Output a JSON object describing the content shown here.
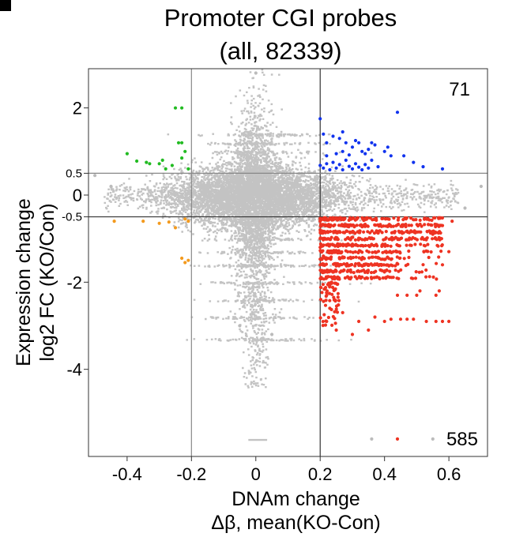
{
  "panel_letter": "",
  "chart_data": {
    "type": "scatter",
    "title": [
      "Promoter CGI probes",
      "(all, 82339)"
    ],
    "xlabel": [
      "DNAm change",
      "Δβ, mean(KO-Con)"
    ],
    "ylabel": [
      "Expression change",
      "log2 FC (KO/Con)"
    ],
    "xlim": [
      -0.52,
      0.72
    ],
    "ylim": [
      -6.0,
      2.9
    ],
    "x_ticks": [
      {
        "value": -0.4,
        "label": "-0.4"
      },
      {
        "value": -0.2,
        "label": "-0.2"
      },
      {
        "value": 0,
        "label": "0"
      },
      {
        "value": 0.2,
        "label": "0.2"
      },
      {
        "value": 0.4,
        "label": "0.4"
      },
      {
        "value": 0.6,
        "label": "0.6"
      }
    ],
    "y_ticks": [
      {
        "value": 2,
        "label": "2",
        "size": "large"
      },
      {
        "value": 0.5,
        "label": "0.5",
        "size": "small"
      },
      {
        "value": 0,
        "label": "0",
        "size": "large"
      },
      {
        "value": -0.5,
        "label": "-0.5",
        "size": "small"
      },
      {
        "value": -2,
        "label": "-2",
        "size": "large"
      },
      {
        "value": -4,
        "label": "-4",
        "size": "large"
      }
    ],
    "reference_lines": {
      "vertical": [
        -0.2,
        0.2
      ],
      "horizontal": [
        0.5,
        -0.5
      ]
    },
    "quadrant_counts": [
      {
        "label": "71",
        "position": "top-right"
      },
      {
        "label": "585",
        "position": "bottom-right"
      }
    ],
    "grid": false,
    "legend": "none",
    "series": [
      {
        "color": "#22bb22",
        "points": [
          [
            -0.4,
            0.95
          ],
          [
            -0.37,
            0.78
          ],
          [
            -0.34,
            0.75
          ],
          [
            -0.33,
            0.72
          ],
          [
            -0.29,
            0.8
          ],
          [
            -0.28,
            0.6
          ],
          [
            -0.26,
            0.68
          ],
          [
            -0.25,
            2.0
          ],
          [
            -0.24,
            1.2
          ],
          [
            -0.23,
            2.0
          ],
          [
            -0.23,
            1.2
          ],
          [
            -0.22,
            1.0
          ],
          [
            -0.23,
            0.85
          ],
          [
            -0.21,
            0.6
          ],
          [
            -0.3,
            0.72
          ]
        ]
      },
      {
        "color": "#1133ee",
        "points": [
          [
            0.2,
            1.75
          ],
          [
            0.21,
            1.4
          ],
          [
            0.22,
            1.2
          ],
          [
            0.24,
            1.35
          ],
          [
            0.26,
            1.3
          ],
          [
            0.27,
            1.45
          ],
          [
            0.28,
            1.2
          ],
          [
            0.3,
            1.1
          ],
          [
            0.31,
            1.25
          ],
          [
            0.32,
            1.2
          ],
          [
            0.34,
            0.95
          ],
          [
            0.36,
            1.2
          ],
          [
            0.37,
            1.15
          ],
          [
            0.4,
            1.0
          ],
          [
            0.42,
            0.9
          ],
          [
            0.44,
            1.9
          ],
          [
            0.46,
            0.9
          ],
          [
            0.49,
            0.75
          ],
          [
            0.52,
            0.65
          ],
          [
            0.58,
            0.6
          ],
          [
            0.2,
            0.68
          ],
          [
            0.21,
            0.62
          ],
          [
            0.22,
            0.72
          ],
          [
            0.23,
            0.58
          ],
          [
            0.24,
            0.75
          ],
          [
            0.25,
            0.62
          ],
          [
            0.26,
            0.7
          ],
          [
            0.27,
            0.58
          ],
          [
            0.28,
            0.8
          ],
          [
            0.29,
            0.66
          ],
          [
            0.3,
            0.6
          ],
          [
            0.31,
            0.72
          ],
          [
            0.32,
            0.64
          ],
          [
            0.33,
            0.58
          ],
          [
            0.34,
            0.7
          ],
          [
            0.35,
            0.62
          ],
          [
            0.36,
            0.8
          ],
          [
            0.38,
            0.65
          ],
          [
            0.22,
            0.9
          ],
          [
            0.25,
            0.95
          ],
          [
            0.27,
            1.0
          ],
          [
            0.29,
            0.92
          ],
          [
            0.33,
            1.0
          ],
          [
            0.35,
            1.05
          ],
          [
            0.41,
            1.1
          ]
        ]
      },
      {
        "color": "#ee3322",
        "points": [
          [
            0.2,
            -0.6
          ],
          [
            0.2,
            -0.8
          ],
          [
            0.2,
            -1.0
          ],
          [
            0.2,
            -1.2
          ],
          [
            0.21,
            -1.4
          ],
          [
            0.21,
            -1.6
          ],
          [
            0.22,
            -1.9
          ],
          [
            0.22,
            -2.3
          ],
          [
            0.23,
            -2.6
          ],
          [
            0.22,
            -2.9
          ],
          [
            0.25,
            -3.1
          ],
          [
            0.3,
            -3.2
          ],
          [
            0.35,
            -3.1
          ],
          [
            0.27,
            -2.7
          ],
          [
            0.32,
            -2.9
          ],
          [
            0.37,
            -2.8
          ],
          [
            0.4,
            -2.9
          ],
          [
            0.42,
            -2.85
          ],
          [
            0.45,
            -2.85
          ],
          [
            0.47,
            -2.85
          ],
          [
            0.49,
            -2.85
          ],
          [
            0.44,
            -2.3
          ],
          [
            0.47,
            -2.3
          ],
          [
            0.5,
            -2.3
          ],
          [
            0.53,
            -2.9
          ],
          [
            0.56,
            -2.9
          ],
          [
            0.58,
            -2.9
          ],
          [
            0.6,
            -2.9
          ],
          [
            0.56,
            -2.3
          ],
          [
            0.57,
            -2.2
          ],
          [
            0.58,
            -1.6
          ],
          [
            0.6,
            -1.3
          ],
          [
            0.55,
            -0.9
          ],
          [
            0.58,
            -0.7
          ],
          [
            0.61,
            -0.6
          ],
          [
            0.51,
            -2.2
          ],
          [
            0.44,
            -5.6
          ]
        ]
      },
      {
        "color": "#f39a1e",
        "points": [
          [
            -0.44,
            -0.6
          ],
          [
            -0.35,
            -0.6
          ],
          [
            -0.3,
            -0.65
          ],
          [
            -0.25,
            -0.75
          ],
          [
            -0.27,
            -0.62
          ],
          [
            -0.22,
            -0.55
          ],
          [
            -0.21,
            -0.6
          ],
          [
            -0.23,
            -1.45
          ],
          [
            -0.22,
            -1.55
          ],
          [
            -0.21,
            -1.5
          ]
        ]
      },
      {
        "color": "#bbbbbb",
        "points": [
          [
            0.0,
            2.8
          ],
          [
            0.7,
            0.2
          ],
          [
            -0.5,
            0.45
          ],
          [
            0.55,
            -5.6
          ],
          [
            0.36,
            -5.6
          ],
          [
            -0.05,
            -3.0
          ],
          [
            0.05,
            -3.2
          ],
          [
            -0.45,
            0.2
          ],
          [
            0.65,
            -0.3
          ]
        ]
      }
    ]
  }
}
